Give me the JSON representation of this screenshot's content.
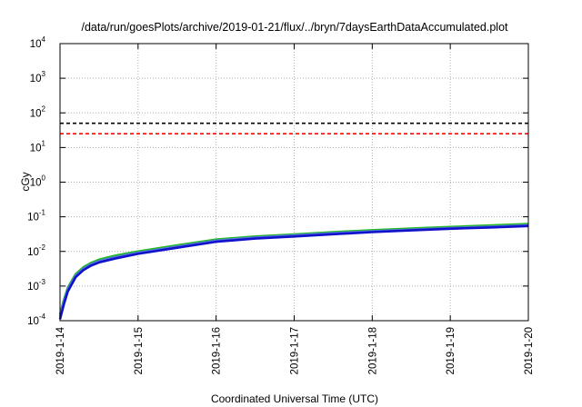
{
  "chart_data": {
    "type": "line",
    "title": "/data/run/goesPlots/archive/2019-01-21/flux/../bryn/7daysEarthDataAccumulated.plot",
    "xlabel": "Coordinated Universal Time (UTC)",
    "ylabel": "cGy",
    "y_scale": "log",
    "ylim": [
      0.0001,
      10000
    ],
    "y_ticks": [
      {
        "base": "10",
        "exp": "-4",
        "value": 0.0001
      },
      {
        "base": "10",
        "exp": "-3",
        "value": 0.001
      },
      {
        "base": "10",
        "exp": "-2",
        "value": 0.01
      },
      {
        "base": "10",
        "exp": "-1",
        "value": 0.1
      },
      {
        "base": "10",
        "exp": "0",
        "value": 1
      },
      {
        "base": "10",
        "exp": "1",
        "value": 10
      },
      {
        "base": "10",
        "exp": "2",
        "value": 100
      },
      {
        "base": "10",
        "exp": "3",
        "value": 1000
      },
      {
        "base": "10",
        "exp": "4",
        "value": 10000
      }
    ],
    "x_ticks": [
      "2019-1-14",
      "2019-1-15",
      "2019-1-16",
      "2019-1-17",
      "2019-1-18",
      "2019-1-19",
      "2019-1-20"
    ],
    "xlim": [
      "2019-01-14",
      "2019-01-20"
    ],
    "grid": true,
    "series": [
      {
        "color": "#22bb22",
        "style": "solid",
        "x": [
          "2019-01-14T00:00",
          "2019-01-14T01:12",
          "2019-01-14T02:24",
          "2019-01-14T04:48",
          "2019-01-14T07:12",
          "2019-01-14T09:36",
          "2019-01-14T12:00",
          "2019-01-14T16:48",
          "2019-01-15T00:00",
          "2019-01-15T12:00",
          "2019-01-16T00:00",
          "2019-01-16T12:00",
          "2019-01-17T00:00",
          "2019-01-17T12:00",
          "2019-01-18T00:00",
          "2019-01-18T12:00",
          "2019-01-19T00:00",
          "2019-01-19T12:00",
          "2019-01-20T00:00"
        ],
        "y": [
          0.00015,
          0.0004,
          0.0009,
          0.0022,
          0.0035,
          0.0047,
          0.0058,
          0.0075,
          0.01,
          0.015,
          0.022,
          0.027,
          0.031,
          0.036,
          0.041,
          0.046,
          0.051,
          0.056,
          0.062
        ]
      },
      {
        "color": "#5577dd",
        "style": "solid",
        "x": [
          "2019-01-14T00:00",
          "2019-01-14T01:12",
          "2019-01-14T02:24",
          "2019-01-14T04:48",
          "2019-01-14T07:12",
          "2019-01-14T09:36",
          "2019-01-14T12:00",
          "2019-01-14T16:48",
          "2019-01-15T00:00",
          "2019-01-15T12:00",
          "2019-01-16T00:00",
          "2019-01-16T12:00",
          "2019-01-17T00:00",
          "2019-01-17T12:00",
          "2019-01-18T00:00",
          "2019-01-18T12:00",
          "2019-01-19T00:00",
          "2019-01-19T12:00",
          "2019-01-20T00:00"
        ],
        "y": [
          0.00013,
          0.00036,
          0.00082,
          0.002,
          0.0032,
          0.0043,
          0.0053,
          0.0068,
          0.0092,
          0.0138,
          0.0205,
          0.0252,
          0.029,
          0.0335,
          0.038,
          0.0425,
          0.047,
          0.052,
          0.057
        ]
      },
      {
        "color": "#1111cc",
        "style": "solid",
        "x": [
          "2019-01-14T00:00",
          "2019-01-14T01:12",
          "2019-01-14T02:24",
          "2019-01-14T04:48",
          "2019-01-14T07:12",
          "2019-01-14T09:36",
          "2019-01-14T12:00",
          "2019-01-14T16:48",
          "2019-01-15T00:00",
          "2019-01-15T12:00",
          "2019-01-16T00:00",
          "2019-01-16T12:00",
          "2019-01-17T00:00",
          "2019-01-17T12:00",
          "2019-01-18T00:00",
          "2019-01-18T12:00",
          "2019-01-19T00:00",
          "2019-01-19T12:00",
          "2019-01-20T00:00"
        ],
        "y": [
          0.00011,
          0.0003,
          0.0007,
          0.0018,
          0.0029,
          0.0039,
          0.0048,
          0.0062,
          0.0085,
          0.0128,
          0.019,
          0.0235,
          0.027,
          0.0315,
          0.036,
          0.0405,
          0.045,
          0.049,
          0.054
        ]
      },
      {
        "color": "#000000",
        "style": "dashed",
        "x": [
          "2019-01-14",
          "2019-01-20"
        ],
        "y": [
          50,
          50
        ]
      },
      {
        "color": "#ff0000",
        "style": "dashed",
        "x": [
          "2019-01-14",
          "2019-01-20"
        ],
        "y": [
          25,
          25
        ]
      }
    ]
  }
}
